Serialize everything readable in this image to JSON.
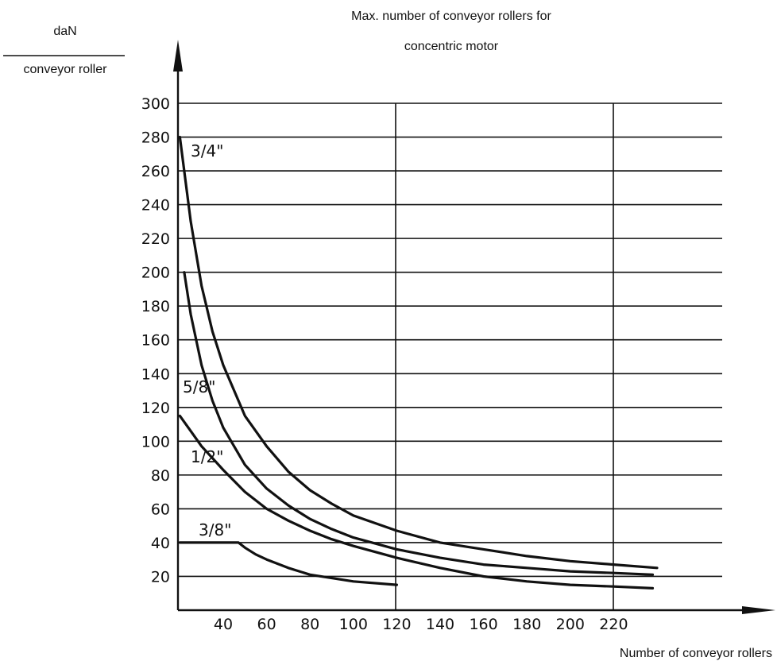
{
  "chart_data": {
    "type": "line",
    "title_line1": "Max. number of conveyor rollers for",
    "title_line2": "concentric motor",
    "ylabel_top": "daN",
    "ylabel_bottom": "conveyor roller",
    "xlabel": "Number of conveyor rollers",
    "xlim": [
      20,
      240
    ],
    "ylim": [
      0,
      300
    ],
    "x_ticks": [
      "40",
      "60",
      "80",
      "100",
      "120",
      "140",
      "160",
      "180",
      "200",
      "220"
    ],
    "y_ticks": [
      "20",
      "40",
      "60",
      "80",
      "100",
      "120",
      "140",
      "160",
      "180",
      "200",
      "220",
      "240",
      "260",
      "280",
      "300"
    ],
    "grid": true,
    "series": [
      {
        "name": "3/4\"",
        "x": [
          20,
          25,
          30,
          35,
          40,
          50,
          60,
          70,
          80,
          90,
          100,
          120,
          140,
          160,
          180,
          200,
          220,
          240
        ],
        "y": [
          280,
          230,
          192,
          165,
          145,
          115,
          97,
          82,
          71,
          63,
          56,
          47,
          40,
          36,
          32,
          29,
          27,
          25
        ]
      },
      {
        "name": "5/8\"",
        "x": [
          22,
          22,
          25,
          30,
          35,
          40,
          50,
          60,
          70,
          80,
          90,
          100,
          120,
          140,
          160,
          180,
          200,
          220,
          238
        ],
        "y": [
          200,
          200,
          175,
          145,
          124,
          108,
          86,
          72,
          62,
          54,
          48,
          43,
          36,
          31,
          27,
          25,
          23,
          22,
          21
        ]
      },
      {
        "name": "1/2\"",
        "x": [
          20,
          25,
          30,
          35,
          40,
          50,
          60,
          70,
          80,
          90,
          100,
          120,
          140,
          160,
          180,
          200,
          220,
          238
        ],
        "y": [
          115,
          106,
          97,
          90,
          83,
          70,
          60,
          53,
          47,
          42,
          38,
          31,
          25,
          20,
          17,
          15,
          14,
          13
        ]
      },
      {
        "name": "3/8\"",
        "x": [
          20,
          47,
          50,
          55,
          60,
          70,
          80,
          90,
          100,
          120
        ],
        "y": [
          40,
          40,
          37,
          33,
          30,
          25,
          21,
          19,
          17,
          15
        ]
      }
    ],
    "label_positions": [
      "top-left",
      "middle-left",
      "middle-left",
      "lower-left"
    ]
  }
}
